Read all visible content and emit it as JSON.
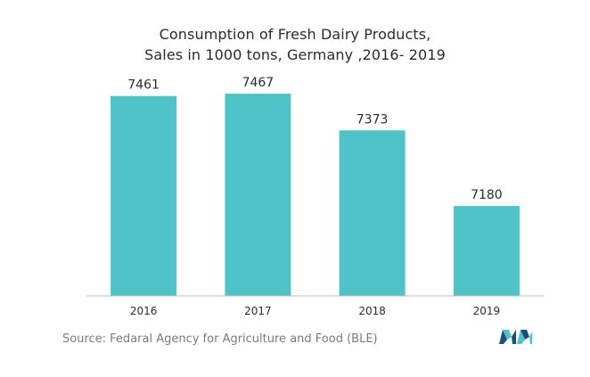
{
  "chart_data": {
    "type": "bar",
    "title_lines": [
      "Consumption of Fresh Dairy Products,",
      "Sales in 1000 tons, Germany ,2016- 2019"
    ],
    "categories": [
      "2016",
      "2017",
      "2018",
      "2019"
    ],
    "values": [
      7461,
      7467,
      7373,
      7180
    ],
    "data_labels": [
      "7461",
      "7467",
      "7373",
      "7180"
    ],
    "xlabel": "",
    "ylabel": "",
    "ylim": [
      6950,
      7490
    ],
    "grid": false,
    "bar_color": "#4fc3c8",
    "source": "Source: Fedaral Agency for Agriculture and Food (BLE)"
  },
  "colors": {
    "title": "#2b2b2b",
    "axis": "#bdbdbd",
    "source_text": "#7b7b7b",
    "logo_dark": "#1f4e79",
    "logo_teal": "#4fc3c8"
  }
}
